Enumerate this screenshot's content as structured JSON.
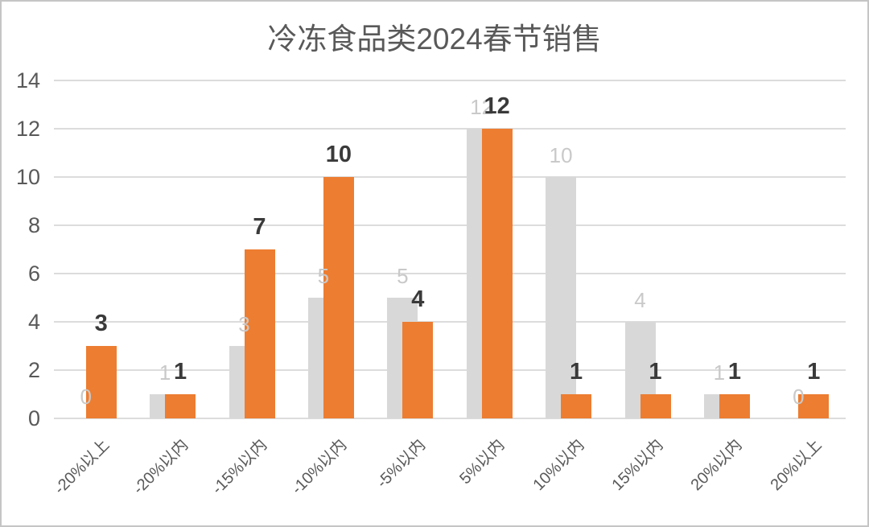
{
  "chart_data": {
    "type": "bar",
    "title": "冷冻食品类2024春节销售",
    "categories": [
      "-20%以上",
      "-20%以内",
      "-15%以内",
      "-10%以内",
      "-5%以内",
      "5%以内",
      "10%以内",
      "15%以内",
      "20%以内",
      "20%以上"
    ],
    "series": [
      {
        "name": "gray",
        "color": "#d8d8d8",
        "label_color": "#c9c9c9",
        "values": [
          0,
          1,
          3,
          5,
          5,
          12,
          10,
          4,
          1,
          0
        ]
      },
      {
        "name": "orange",
        "color": "#ED7D31",
        "label_color": "#3a3a3a",
        "values": [
          3,
          1,
          7,
          10,
          4,
          12,
          1,
          1,
          1,
          1
        ]
      }
    ],
    "xlabel": "",
    "ylabel": "",
    "ylim": [
      0,
      14
    ],
    "y_ticks": [
      0,
      2,
      4,
      6,
      8,
      10,
      12,
      14
    ],
    "grid": "horizontal",
    "legend": "none",
    "colors": {
      "title_text": "#595959",
      "axis_text": "#595959",
      "gridline": "#dcdcdc",
      "frame_border": "#c5c5c5"
    }
  }
}
